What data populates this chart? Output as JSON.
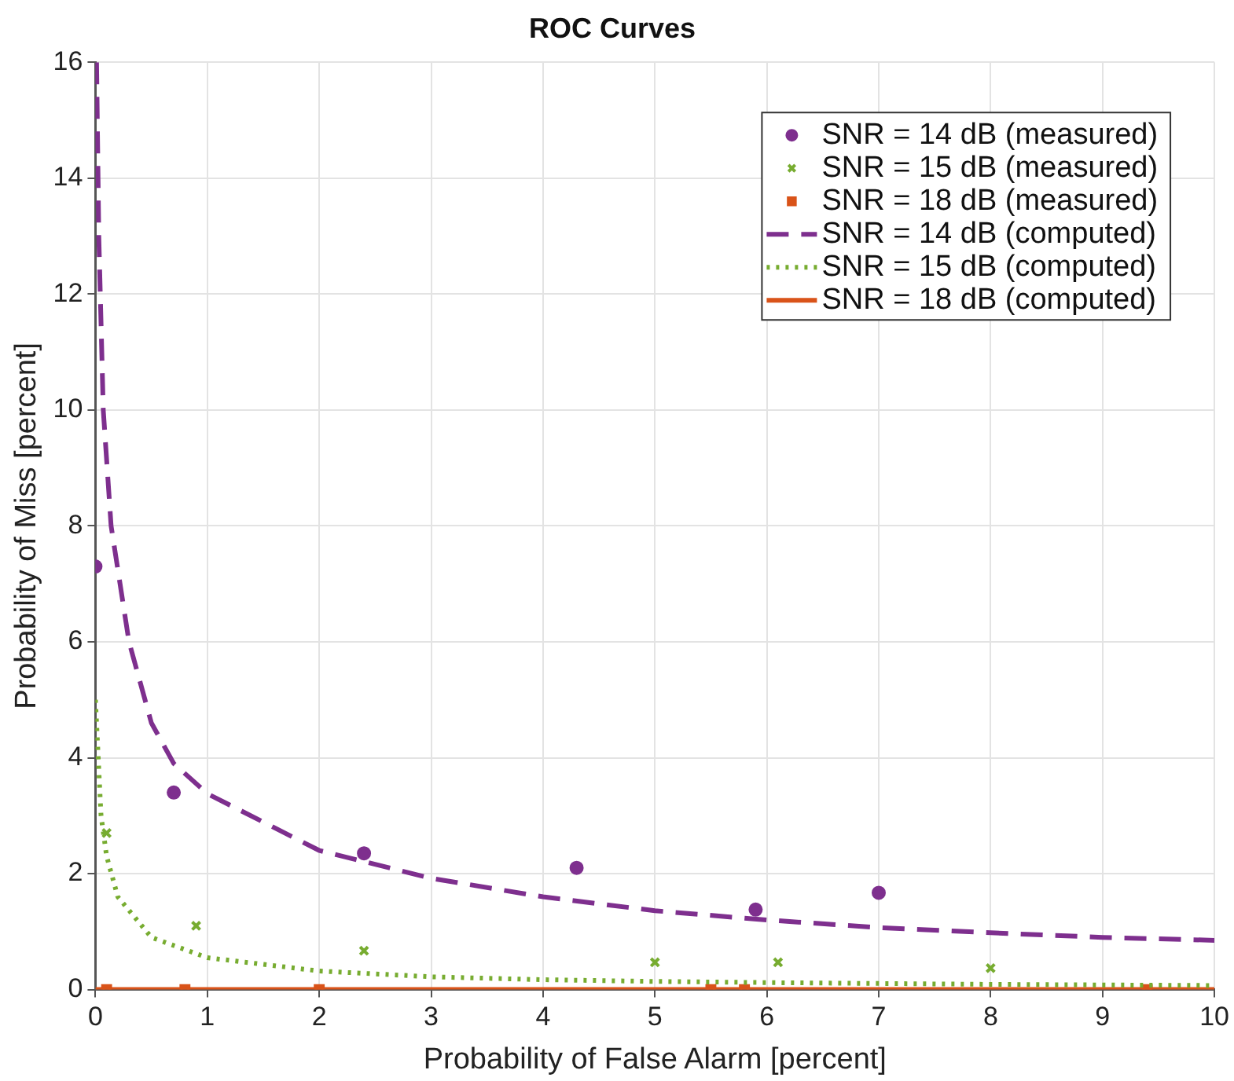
{
  "chart_data": {
    "type": "scatter",
    "title": "ROC Curves",
    "xlabel": "Probability of False Alarm [percent]",
    "ylabel": "Probability of Miss [percent]",
    "xlim": [
      0,
      10
    ],
    "ylim": [
      0,
      16
    ],
    "xticks": [
      0,
      1,
      2,
      3,
      4,
      5,
      6,
      7,
      8,
      9,
      10
    ],
    "yticks": [
      0,
      2,
      4,
      6,
      8,
      10,
      12,
      14,
      16
    ],
    "grid": true,
    "legend": "top right",
    "series": [
      {
        "name": "SNR = 14 dB (measured)",
        "type": "scatter",
        "marker": "circle",
        "color": "#7e2f8e",
        "x": [
          0,
          0.7,
          2.4,
          4.3,
          5.9,
          7
        ],
        "values": [
          7.3,
          3.4,
          2.35,
          2.1,
          1.38,
          1.67
        ]
      },
      {
        "name": "SNR = 15 dB (measured)",
        "type": "scatter",
        "marker": "cross",
        "color": "#77ac30",
        "x": [
          0.1,
          0.9,
          2.4,
          5,
          6.1,
          8
        ],
        "values": [
          2.7,
          1.1,
          0.67,
          0.47,
          0.47,
          0.37
        ]
      },
      {
        "name": "SNR = 18 dB (measured)",
        "type": "scatter",
        "marker": "square",
        "color": "#d95319",
        "x": [
          0.1,
          0.8,
          2,
          5.5,
          5.8,
          9.4
        ],
        "values": [
          0,
          0,
          0,
          0,
          0,
          0
        ]
      },
      {
        "name": "SNR = 14 dB (computed)",
        "type": "line",
        "line_style": "dashed",
        "color": "#7e2f8e",
        "x": [
          0.01,
          0.03,
          0.07,
          0.14,
          0.3,
          0.5,
          0.7,
          1,
          2,
          3,
          4,
          5,
          6,
          7,
          8,
          9,
          10
        ],
        "values": [
          16,
          13,
          10,
          8,
          6,
          4.6,
          3.9,
          3.38,
          2.4,
          1.92,
          1.6,
          1.36,
          1.2,
          1.07,
          0.98,
          0.9,
          0.85
        ]
      },
      {
        "name": "SNR = 15 dB (computed)",
        "type": "line",
        "line_style": "dotted",
        "color": "#77ac30",
        "x": [
          0,
          0.05,
          0.1,
          0.2,
          0.5,
          1,
          2,
          3,
          4,
          5,
          6,
          8,
          10
        ],
        "values": [
          5,
          3,
          2.3,
          1.6,
          0.9,
          0.55,
          0.32,
          0.22,
          0.17,
          0.14,
          0.12,
          0.09,
          0.07
        ]
      },
      {
        "name": "SNR = 18 dB (computed)",
        "type": "line",
        "line_style": "solid",
        "color": "#d95319",
        "x": [
          0,
          10
        ],
        "values": [
          0,
          0
        ]
      }
    ]
  }
}
